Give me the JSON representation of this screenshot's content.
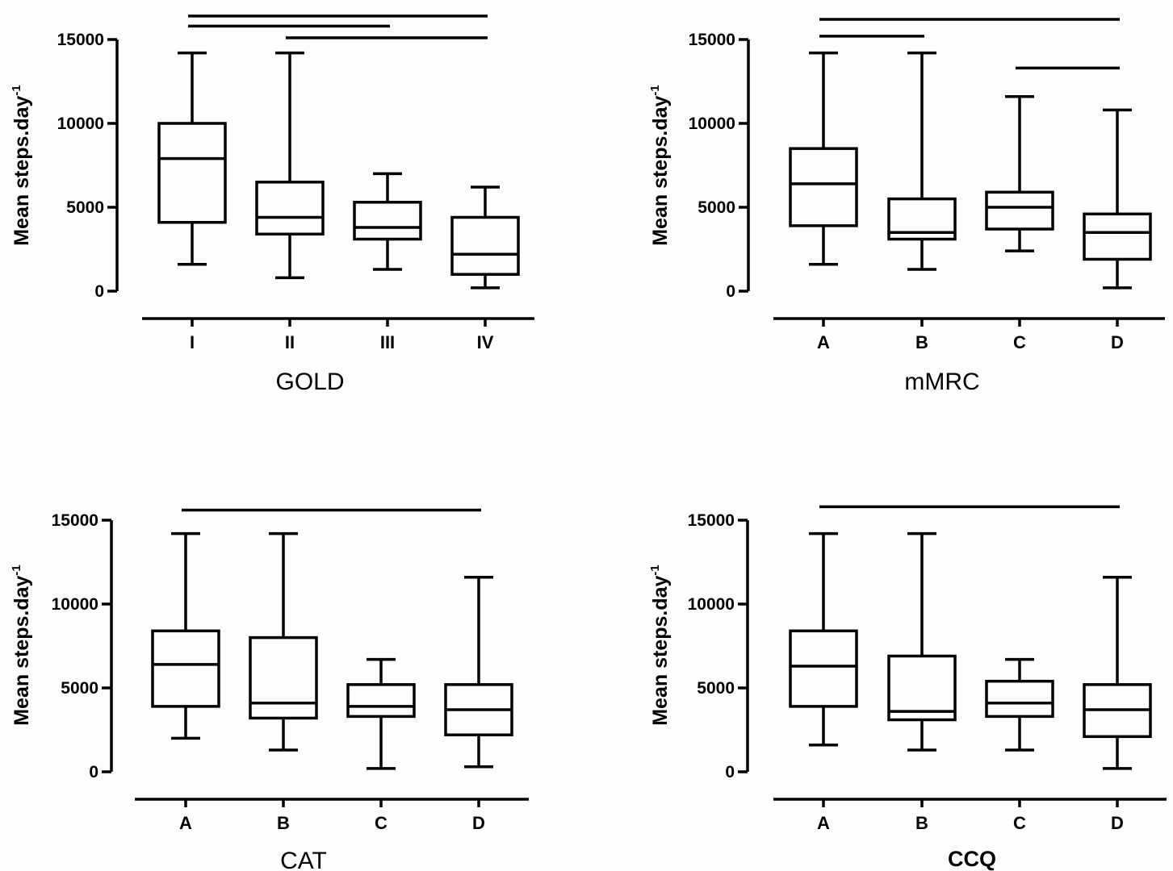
{
  "chart_data": [
    {
      "type": "boxplot",
      "xlabel": "GOLD",
      "ylabel": "Mean steps.day",
      "ylabel_sup": "-1",
      "ylim": [
        0,
        15000
      ],
      "yticks": [
        "0",
        "5000",
        "10000",
        "15000"
      ],
      "categories": [
        "I",
        "II",
        "III",
        "IV"
      ],
      "boxes": [
        {
          "min": 1600,
          "q1": 4100,
          "median": 7900,
          "q3": 10000,
          "max": 14200
        },
        {
          "min": 800,
          "q1": 3400,
          "median": 4400,
          "q3": 6500,
          "max": 14200
        },
        {
          "min": 1300,
          "q1": 3100,
          "median": 3800,
          "q3": 5300,
          "max": 7000
        },
        {
          "min": 200,
          "q1": 1000,
          "median": 2200,
          "q3": 4400,
          "max": 6200
        }
      ],
      "significance": [
        {
          "from": 0,
          "to": 3,
          "level": 16400
        },
        {
          "from": 0,
          "to": 2,
          "level": 15800
        },
        {
          "from": 1,
          "to": 3,
          "level": 15100
        }
      ]
    },
    {
      "type": "boxplot",
      "xlabel": "mMRC",
      "ylabel": "Mean steps.day",
      "ylabel_sup": "-1",
      "ylim": [
        0,
        15000
      ],
      "yticks": [
        "0",
        "5000",
        "10000",
        "15000"
      ],
      "categories": [
        "A",
        "B",
        "C",
        "D"
      ],
      "boxes": [
        {
          "min": 1600,
          "q1": 3900,
          "median": 6400,
          "q3": 8500,
          "max": 14200
        },
        {
          "min": 1300,
          "q1": 3100,
          "median": 3500,
          "q3": 5500,
          "max": 14200
        },
        {
          "min": 2400,
          "q1": 3700,
          "median": 5000,
          "q3": 5900,
          "max": 11600
        },
        {
          "min": 200,
          "q1": 1900,
          "median": 3500,
          "q3": 4600,
          "max": 10800
        }
      ],
      "significance": [
        {
          "from": 0,
          "to": 3,
          "level": 16200
        },
        {
          "from": 0,
          "to": 1,
          "level": 15200
        },
        {
          "from": 2,
          "to": 3,
          "level": 13300
        }
      ]
    },
    {
      "type": "boxplot",
      "xlabel": "CAT",
      "ylabel": "Mean steps.day",
      "ylabel_sup": "-1",
      "ylim": [
        0,
        15000
      ],
      "yticks": [
        "0",
        "5000",
        "10000",
        "15000"
      ],
      "categories": [
        "A",
        "B",
        "C",
        "D"
      ],
      "boxes": [
        {
          "min": 2000,
          "q1": 3900,
          "median": 6400,
          "q3": 8400,
          "max": 14200
        },
        {
          "min": 1300,
          "q1": 3200,
          "median": 4100,
          "q3": 8000,
          "max": 14200
        },
        {
          "min": 200,
          "q1": 3300,
          "median": 3900,
          "q3": 5200,
          "max": 6700
        },
        {
          "min": 300,
          "q1": 2200,
          "median": 3700,
          "q3": 5200,
          "max": 11600
        }
      ],
      "significance": [
        {
          "from": 0,
          "to": 3,
          "level": 15600
        }
      ]
    },
    {
      "type": "boxplot",
      "xlabel": "CCQ",
      "ylabel": "Mean steps.day",
      "ylabel_sup": "-1",
      "ylim": [
        0,
        15000
      ],
      "yticks": [
        "0",
        "5000",
        "10000",
        "15000"
      ],
      "categories": [
        "A",
        "B",
        "C",
        "D"
      ],
      "boxes": [
        {
          "min": 1600,
          "q1": 3900,
          "median": 6300,
          "q3": 8400,
          "max": 14200
        },
        {
          "min": 1300,
          "q1": 3100,
          "median": 3600,
          "q3": 6900,
          "max": 14200
        },
        {
          "min": 1300,
          "q1": 3300,
          "median": 4100,
          "q3": 5400,
          "max": 6700
        },
        {
          "min": 200,
          "q1": 2100,
          "median": 3700,
          "q3": 5200,
          "max": 11600
        }
      ],
      "significance": [
        {
          "from": 0,
          "to": 3,
          "level": 15800
        }
      ]
    }
  ]
}
